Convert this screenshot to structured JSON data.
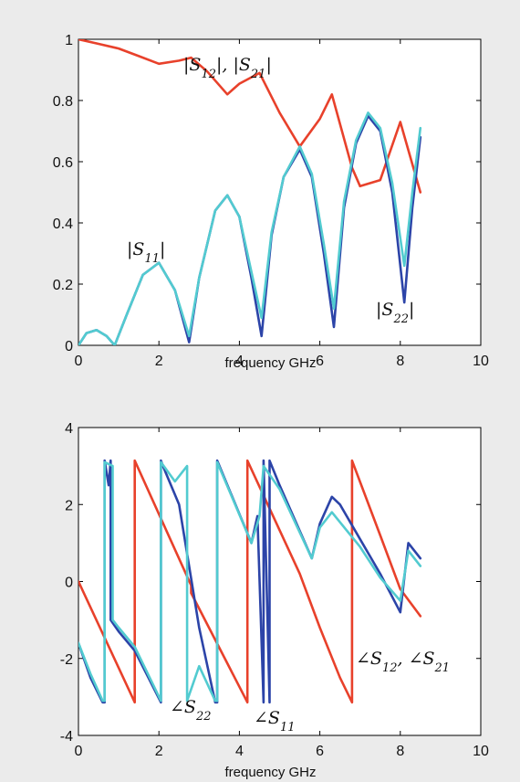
{
  "colors": {
    "background": "#ebebeb",
    "plot_bg": "#ffffff",
    "red": "#e8412b",
    "blue": "#2c44a8",
    "cyan": "#52cbd0"
  },
  "chart_data": [
    {
      "type": "line",
      "xlabel": "frequency   GHz",
      "xlim": [
        0,
        10
      ],
      "ylim": [
        0,
        1
      ],
      "xticks": [
        "0",
        "2",
        "4",
        "6",
        "8",
        "10"
      ],
      "yticks": [
        "0",
        "0.2",
        "0.4",
        "0.6",
        "0.8",
        "1"
      ],
      "grid": false,
      "annotations": [
        {
          "text": "|S12|, |S21|"
        },
        {
          "text": "|S11|"
        },
        {
          "text": "|S22|"
        }
      ],
      "series": [
        {
          "color": "red",
          "x": [
            0,
            0.5,
            1.0,
            1.5,
            2.0,
            2.5,
            2.8,
            3.2,
            3.7,
            4.0,
            4.5,
            5.0,
            5.5,
            6.0,
            6.3,
            6.8,
            7.0,
            7.5,
            8.0,
            8.5
          ],
          "y": [
            1.0,
            0.985,
            0.97,
            0.945,
            0.92,
            0.93,
            0.94,
            0.895,
            0.82,
            0.855,
            0.89,
            0.76,
            0.65,
            0.74,
            0.82,
            0.58,
            0.52,
            0.54,
            0.73,
            0.5
          ]
        },
        {
          "color": "blue",
          "x": [
            0,
            0.2,
            0.45,
            0.7,
            0.9,
            1.2,
            1.6,
            2.0,
            2.4,
            2.75,
            3.0,
            3.4,
            3.7,
            4.0,
            4.3,
            4.55,
            4.8,
            5.1,
            5.5,
            5.8,
            6.1,
            6.35,
            6.6,
            6.9,
            7.2,
            7.5,
            7.8,
            8.1,
            8.3,
            8.5
          ],
          "y": [
            0.0,
            0.04,
            0.05,
            0.03,
            0.0,
            0.1,
            0.23,
            0.27,
            0.18,
            0.01,
            0.22,
            0.44,
            0.49,
            0.42,
            0.22,
            0.03,
            0.36,
            0.55,
            0.64,
            0.55,
            0.3,
            0.06,
            0.45,
            0.66,
            0.75,
            0.7,
            0.5,
            0.14,
            0.45,
            0.68
          ]
        },
        {
          "color": "cyan",
          "x": [
            0,
            0.2,
            0.45,
            0.7,
            0.9,
            1.2,
            1.6,
            2.0,
            2.4,
            2.75,
            3.0,
            3.4,
            3.7,
            4.0,
            4.3,
            4.55,
            4.8,
            5.1,
            5.5,
            5.8,
            6.1,
            6.35,
            6.6,
            6.9,
            7.2,
            7.5,
            7.8,
            8.1,
            8.3,
            8.5
          ],
          "y": [
            0.0,
            0.04,
            0.05,
            0.03,
            0.0,
            0.1,
            0.23,
            0.27,
            0.18,
            0.03,
            0.22,
            0.44,
            0.49,
            0.42,
            0.24,
            0.09,
            0.37,
            0.55,
            0.65,
            0.56,
            0.33,
            0.12,
            0.47,
            0.67,
            0.76,
            0.71,
            0.53,
            0.26,
            0.5,
            0.71
          ]
        }
      ]
    },
    {
      "type": "line",
      "xlabel": "frequency   GHz",
      "xlim": [
        0,
        10
      ],
      "ylim": [
        -4,
        4
      ],
      "xticks": [
        "0",
        "2",
        "4",
        "6",
        "8",
        "10"
      ],
      "yticks": [
        "-4",
        "-2",
        "0",
        "2",
        "4"
      ],
      "grid": false,
      "annotations": [
        {
          "text": "∠S12, ∠S21"
        },
        {
          "text": "∠S22"
        },
        {
          "text": "∠S11"
        }
      ],
      "series": [
        {
          "color": "red",
          "x": [
            0,
            1.4,
            1.4,
            2.8,
            2.8,
            4.2,
            4.2,
            5.5,
            6.0,
            6.5,
            6.8,
            6.8,
            7.5,
            8.0,
            8.5
          ],
          "y": [
            0.0,
            -3.14,
            3.14,
            -0.1,
            -0.3,
            -3.14,
            3.14,
            0.2,
            -1.2,
            -2.5,
            -3.14,
            3.14,
            1.2,
            -0.2,
            -0.9
          ],
          "jumps_at": [
            1.4,
            4.2,
            6.8
          ]
        },
        {
          "color": "blue",
          "x": [
            0,
            0.3,
            0.6,
            0.65,
            0.65,
            0.75,
            0.8,
            0.8,
            1.0,
            1.4,
            2.05,
            2.05,
            2.1,
            2.5,
            3.0,
            3.4,
            3.45,
            3.45,
            4.3,
            4.45,
            4.6,
            4.6,
            4.75,
            4.75,
            5.0,
            5.8,
            6.0,
            6.3,
            6.5,
            7.0,
            7.5,
            8.0,
            8.2,
            8.5
          ],
          "y": [
            -1.6,
            -2.5,
            -3.14,
            -3.14,
            3.14,
            2.5,
            3.14,
            -1.0,
            -1.3,
            -1.8,
            -3.14,
            3.14,
            3.0,
            2.0,
            -1.2,
            -3.14,
            -3.14,
            3.14,
            1.0,
            1.7,
            -3.14,
            3.14,
            -3.14,
            3.14,
            2.5,
            0.6,
            1.5,
            2.2,
            2.0,
            1.1,
            0.2,
            -0.8,
            1.0,
            0.6
          ]
        },
        {
          "color": "cyan",
          "x": [
            0,
            0.3,
            0.6,
            0.65,
            0.65,
            0.85,
            0.85,
            1.0,
            1.4,
            2.05,
            2.05,
            2.4,
            2.7,
            2.7,
            3.0,
            3.4,
            3.45,
            3.45,
            4.3,
            4.5,
            4.6,
            5.0,
            5.8,
            6.0,
            6.3,
            7.0,
            7.5,
            8.0,
            8.2,
            8.5
          ],
          "y": [
            -1.6,
            -2.4,
            -3.1,
            -3.1,
            3.1,
            3.0,
            -1.0,
            -1.2,
            -1.7,
            -3.1,
            3.1,
            2.6,
            3.0,
            -3.1,
            -2.2,
            -3.1,
            -3.1,
            3.1,
            1.0,
            1.7,
            3.0,
            2.4,
            0.6,
            1.4,
            1.8,
            0.9,
            0.1,
            -0.5,
            0.8,
            0.4
          ]
        }
      ]
    }
  ]
}
